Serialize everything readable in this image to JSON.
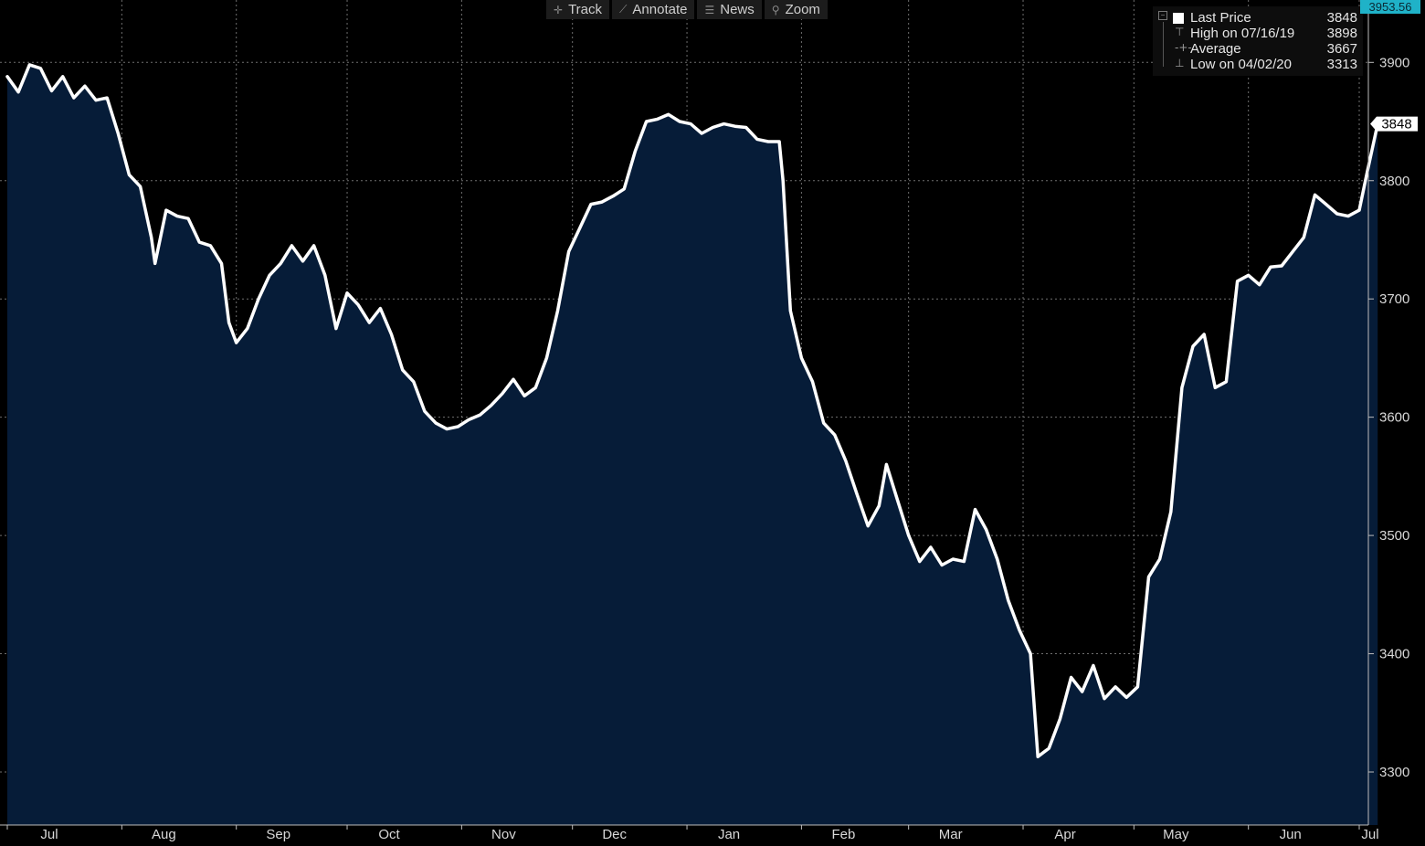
{
  "toolbar": {
    "track_label": "Track",
    "annotate_label": "Annotate",
    "news_label": "News",
    "zoom_label": "Zoom"
  },
  "legend": {
    "last_price": {
      "label": "Last Price",
      "value": "3848"
    },
    "high": {
      "label": "High on 07/16/19",
      "value": "3898"
    },
    "average": {
      "label": "Average",
      "value": "3667"
    },
    "low": {
      "label": "Low on 04/02/20",
      "value": "3313"
    }
  },
  "axis_max_label": "3953.56",
  "colors": {
    "background": "#000000",
    "area_fill": "#061c38",
    "line": "#ffffff",
    "grid": "#6f6f6f",
    "axis_text": "#d8d8d8",
    "max_badge": "#1fb2c8"
  },
  "chart_data": {
    "type": "area",
    "title": "",
    "xlabel": "",
    "ylabel": "",
    "ylim": [
      3270,
      3953.56
    ],
    "y_ticks": [
      3300,
      3400,
      3500,
      3600,
      3700,
      3800,
      3900
    ],
    "grid": true,
    "legend_position": "top-right",
    "last_value_label": "3848",
    "x_ticks": [
      {
        "label": "Jul",
        "date": "2019-07-01"
      },
      {
        "label": "Aug",
        "date": "2019-08-01"
      },
      {
        "label": "Sep",
        "date": "2019-09-01"
      },
      {
        "label": "Oct",
        "date": "2019-10-01"
      },
      {
        "label": "Nov",
        "date": "2019-11-01"
      },
      {
        "label": "Dec",
        "date": "2019-12-01"
      },
      {
        "label": "Jan",
        "date": "2020-01-01"
      },
      {
        "label": "Feb",
        "date": "2020-02-01"
      },
      {
        "label": "Mar",
        "date": "2020-03-01"
      },
      {
        "label": "Apr",
        "date": "2020-04-01"
      },
      {
        "label": "May",
        "date": "2020-05-01"
      },
      {
        "label": "Jun",
        "date": "2020-06-01"
      },
      {
        "label": "Jul",
        "date": "2020-07-01"
      }
    ],
    "x_domain": [
      "2019-07-01",
      "2020-07-01"
    ],
    "series": [
      {
        "name": "Last Price",
        "points": [
          [
            "2019-07-01",
            3888
          ],
          [
            "2019-07-04",
            3875
          ],
          [
            "2019-07-07",
            3898
          ],
          [
            "2019-07-10",
            3895
          ],
          [
            "2019-07-13",
            3876
          ],
          [
            "2019-07-16",
            3888
          ],
          [
            "2019-07-19",
            3870
          ],
          [
            "2019-07-22",
            3880
          ],
          [
            "2019-07-25",
            3868
          ],
          [
            "2019-07-28",
            3870
          ],
          [
            "2019-07-31",
            3840
          ],
          [
            "2019-08-03",
            3805
          ],
          [
            "2019-08-06",
            3795
          ],
          [
            "2019-08-09",
            3752
          ],
          [
            "2019-08-10",
            3730
          ],
          [
            "2019-08-13",
            3775
          ],
          [
            "2019-08-16",
            3770
          ],
          [
            "2019-08-19",
            3768
          ],
          [
            "2019-08-22",
            3748
          ],
          [
            "2019-08-25",
            3745
          ],
          [
            "2019-08-28",
            3730
          ],
          [
            "2019-08-30",
            3680
          ],
          [
            "2019-09-01",
            3663
          ],
          [
            "2019-09-04",
            3675
          ],
          [
            "2019-09-07",
            3700
          ],
          [
            "2019-09-10",
            3720
          ],
          [
            "2019-09-13",
            3730
          ],
          [
            "2019-09-16",
            3745
          ],
          [
            "2019-09-19",
            3732
          ],
          [
            "2019-09-22",
            3745
          ],
          [
            "2019-09-25",
            3720
          ],
          [
            "2019-09-28",
            3675
          ],
          [
            "2019-10-01",
            3705
          ],
          [
            "2019-10-04",
            3695
          ],
          [
            "2019-10-07",
            3680
          ],
          [
            "2019-10-10",
            3692
          ],
          [
            "2019-10-13",
            3670
          ],
          [
            "2019-10-16",
            3640
          ],
          [
            "2019-10-19",
            3630
          ],
          [
            "2019-10-22",
            3605
          ],
          [
            "2019-10-25",
            3595
          ],
          [
            "2019-10-28",
            3590
          ],
          [
            "2019-10-31",
            3592
          ],
          [
            "2019-11-03",
            3598
          ],
          [
            "2019-11-06",
            3602
          ],
          [
            "2019-11-09",
            3610
          ],
          [
            "2019-11-12",
            3620
          ],
          [
            "2019-11-15",
            3632
          ],
          [
            "2019-11-18",
            3618
          ],
          [
            "2019-11-21",
            3625
          ],
          [
            "2019-11-24",
            3650
          ],
          [
            "2019-11-27",
            3690
          ],
          [
            "2019-11-30",
            3740
          ],
          [
            "2019-12-03",
            3760
          ],
          [
            "2019-12-06",
            3780
          ],
          [
            "2019-12-09",
            3782
          ],
          [
            "2019-12-12",
            3787
          ],
          [
            "2019-12-15",
            3793
          ],
          [
            "2019-12-18",
            3825
          ],
          [
            "2019-12-21",
            3850
          ],
          [
            "2019-12-24",
            3852
          ],
          [
            "2019-12-27",
            3856
          ],
          [
            "2019-12-30",
            3850
          ],
          [
            "2020-01-02",
            3848
          ],
          [
            "2020-01-05",
            3840
          ],
          [
            "2020-01-08",
            3845
          ],
          [
            "2020-01-11",
            3848
          ],
          [
            "2020-01-14",
            3846
          ],
          [
            "2020-01-17",
            3845
          ],
          [
            "2020-01-20",
            3835
          ],
          [
            "2020-01-23",
            3833
          ],
          [
            "2020-01-26",
            3833
          ],
          [
            "2020-01-27",
            3800
          ],
          [
            "2020-01-29",
            3690
          ],
          [
            "2020-02-01",
            3650
          ],
          [
            "2020-02-04",
            3630
          ],
          [
            "2020-02-07",
            3595
          ],
          [
            "2020-02-10",
            3585
          ],
          [
            "2020-02-13",
            3563
          ],
          [
            "2020-02-16",
            3535
          ],
          [
            "2020-02-19",
            3508
          ],
          [
            "2020-02-22",
            3525
          ],
          [
            "2020-02-24",
            3560
          ],
          [
            "2020-02-27",
            3530
          ],
          [
            "2020-03-01",
            3500
          ],
          [
            "2020-03-04",
            3478
          ],
          [
            "2020-03-07",
            3490
          ],
          [
            "2020-03-10",
            3475
          ],
          [
            "2020-03-13",
            3480
          ],
          [
            "2020-03-16",
            3478
          ],
          [
            "2020-03-19",
            3522
          ],
          [
            "2020-03-22",
            3505
          ],
          [
            "2020-03-25",
            3480
          ],
          [
            "2020-03-28",
            3445
          ],
          [
            "2020-03-31",
            3420
          ],
          [
            "2020-04-03",
            3400
          ],
          [
            "2020-04-05",
            3313
          ],
          [
            "2020-04-08",
            3320
          ],
          [
            "2020-04-11",
            3345
          ],
          [
            "2020-04-14",
            3380
          ],
          [
            "2020-04-17",
            3368
          ],
          [
            "2020-04-20",
            3390
          ],
          [
            "2020-04-23",
            3362
          ],
          [
            "2020-04-26",
            3372
          ],
          [
            "2020-04-29",
            3363
          ],
          [
            "2020-05-02",
            3372
          ],
          [
            "2020-05-05",
            3465
          ],
          [
            "2020-05-08",
            3480
          ],
          [
            "2020-05-11",
            3520
          ],
          [
            "2020-05-14",
            3625
          ],
          [
            "2020-05-17",
            3660
          ],
          [
            "2020-05-20",
            3670
          ],
          [
            "2020-05-23",
            3625
          ],
          [
            "2020-05-26",
            3630
          ],
          [
            "2020-05-29",
            3715
          ],
          [
            "2020-06-01",
            3720
          ],
          [
            "2020-06-04",
            3712
          ],
          [
            "2020-06-07",
            3727
          ],
          [
            "2020-06-10",
            3728
          ],
          [
            "2020-06-13",
            3740
          ],
          [
            "2020-06-16",
            3752
          ],
          [
            "2020-06-19",
            3788
          ],
          [
            "2020-06-22",
            3780
          ],
          [
            "2020-06-25",
            3772
          ],
          [
            "2020-06-28",
            3770
          ],
          [
            "2020-07-01",
            3775
          ],
          [
            "2020-07-03",
            3805
          ],
          [
            "2020-07-06",
            3848
          ]
        ]
      }
    ]
  }
}
